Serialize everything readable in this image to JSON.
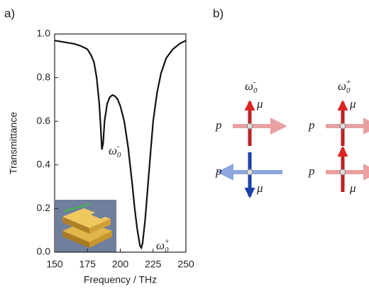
{
  "chart_data": {
    "type": "line",
    "panel_label": "a)",
    "x_label": "Frequency / THz",
    "y_label": "Transmittance",
    "x": [
      150,
      155,
      160,
      165,
      170,
      175,
      178,
      180,
      182,
      184,
      185,
      186,
      187,
      188,
      190,
      192,
      194,
      196,
      198,
      200,
      203,
      206,
      209,
      211,
      213,
      215,
      216,
      217,
      219,
      221,
      223,
      225,
      228,
      231,
      235,
      240,
      245,
      250
    ],
    "values": [
      0.97,
      0.965,
      0.96,
      0.955,
      0.945,
      0.93,
      0.9,
      0.87,
      0.8,
      0.68,
      0.58,
      0.47,
      0.5,
      0.6,
      0.68,
      0.71,
      0.72,
      0.715,
      0.7,
      0.67,
      0.6,
      0.48,
      0.32,
      0.2,
      0.1,
      0.03,
      0.02,
      0.04,
      0.15,
      0.3,
      0.45,
      0.6,
      0.73,
      0.82,
      0.89,
      0.93,
      0.955,
      0.97
    ],
    "color": "#111111",
    "xlim": [
      150,
      250
    ],
    "ylim": [
      0,
      1
    ],
    "xticks": [
      150,
      175,
      200,
      225,
      250
    ],
    "yticks": [
      {
        "value": 0,
        "label": "0.0"
      },
      0.2,
      0.4,
      0.6,
      0.8,
      {
        "value": 1,
        "label": "1.0"
      }
    ],
    "annotations": [
      {
        "text": "ω",
        "sub": "0",
        "sup": "-"
      },
      {
        "text": "ω",
        "sub": "0",
        "sup": "+"
      }
    ]
  },
  "diagram": {
    "label": "b)",
    "columns": [
      {
        "title": {
          "text": "ω",
          "sub": "0",
          "sup": "-"
        },
        "top": {
          "p": "p",
          "mu": "μ"
        },
        "bottom": {
          "p": "p",
          "mu": "μ"
        }
      },
      {
        "title": {
          "text": "ω",
          "sub": "0",
          "sup": "+"
        },
        "top": {
          "p": "p",
          "mu": "μ"
        },
        "bottom": {
          "p": "p",
          "mu": "μ"
        }
      }
    ]
  }
}
